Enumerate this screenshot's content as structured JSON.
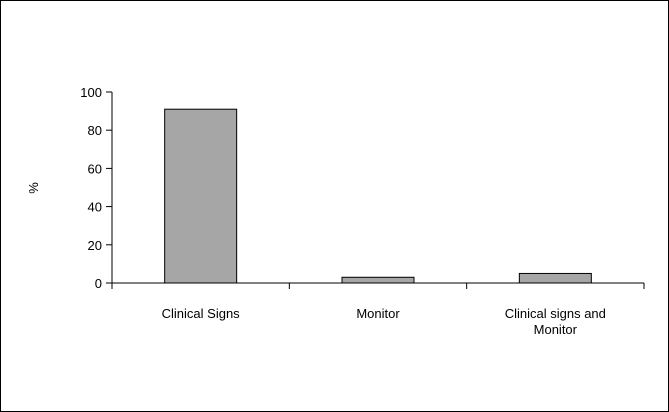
{
  "chart_data": {
    "type": "bar",
    "categories": [
      "Clinical Signs",
      "Monitor",
      "Clinical signs and Monitor"
    ],
    "category_label_lines": [
      [
        "Clinical Signs"
      ],
      [
        "Monitor"
      ],
      [
        "Clinical signs and",
        "Monitor"
      ]
    ],
    "values": [
      91,
      3,
      5
    ],
    "ylabel": "%",
    "xlabel": "",
    "ylim": [
      0,
      100
    ],
    "yticks": [
      0,
      20,
      40,
      60,
      80,
      100
    ],
    "grid": false,
    "legend": "none",
    "bar_color": "#a6a6a6",
    "bar_stroke": "#000000"
  }
}
